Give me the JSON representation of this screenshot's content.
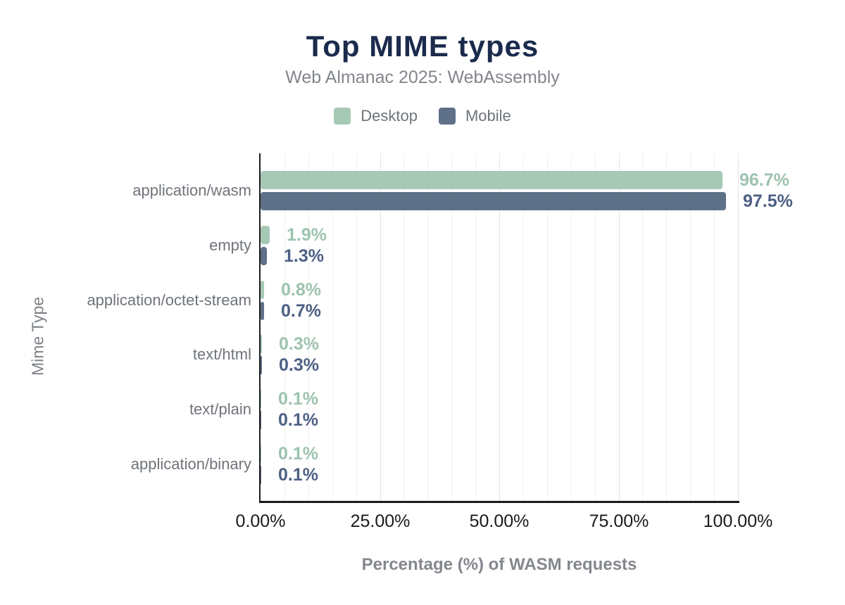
{
  "header": {
    "title": "Top MIME types",
    "subtitle": "Web Almanac 2025: WebAssembly"
  },
  "legend": {
    "items": [
      {
        "label": "Desktop",
        "color": "#a6c9b6"
      },
      {
        "label": "Mobile",
        "color": "#5e7189"
      }
    ]
  },
  "chart_data": {
    "type": "bar",
    "orientation": "horizontal",
    "title": "Top MIME types",
    "subtitle": "Web Almanac 2025: WebAssembly",
    "categories": [
      "application/wasm",
      "empty",
      "application/octet-stream",
      "text/html",
      "text/plain",
      "application/binary"
    ],
    "series": [
      {
        "name": "Desktop",
        "color": "#a6c9b6",
        "label_color": "#9dc3ae",
        "values": [
          96.7,
          1.9,
          0.8,
          0.3,
          0.1,
          0.1
        ],
        "labels": [
          "96.7%",
          "1.9%",
          "0.8%",
          "0.3%",
          "0.1%",
          "0.1%"
        ]
      },
      {
        "name": "Mobile",
        "color": "#5e7189",
        "label_color": "#4d6084",
        "values": [
          97.5,
          1.3,
          0.7,
          0.3,
          0.1,
          0.1
        ],
        "labels": [
          "97.5%",
          "1.3%",
          "0.7%",
          "0.3%",
          "0.1%",
          "0.1%"
        ]
      }
    ],
    "xlabel": "Percentage (%) of WASM requests",
    "ylabel": "Mime Type",
    "xlim": [
      0,
      100
    ],
    "x_ticks": [
      {
        "value": 0,
        "label": "0.00%"
      },
      {
        "value": 25,
        "label": "25.00%"
      },
      {
        "value": 50,
        "label": "50.00%"
      },
      {
        "value": 75,
        "label": "75.00%"
      },
      {
        "value": 100,
        "label": "100.00%"
      }
    ],
    "grid": {
      "minor_step": 5,
      "major_step": 25,
      "minor_color": "#f0f0f2",
      "major_color": "#e4e4e7"
    },
    "legend_position": "top"
  }
}
